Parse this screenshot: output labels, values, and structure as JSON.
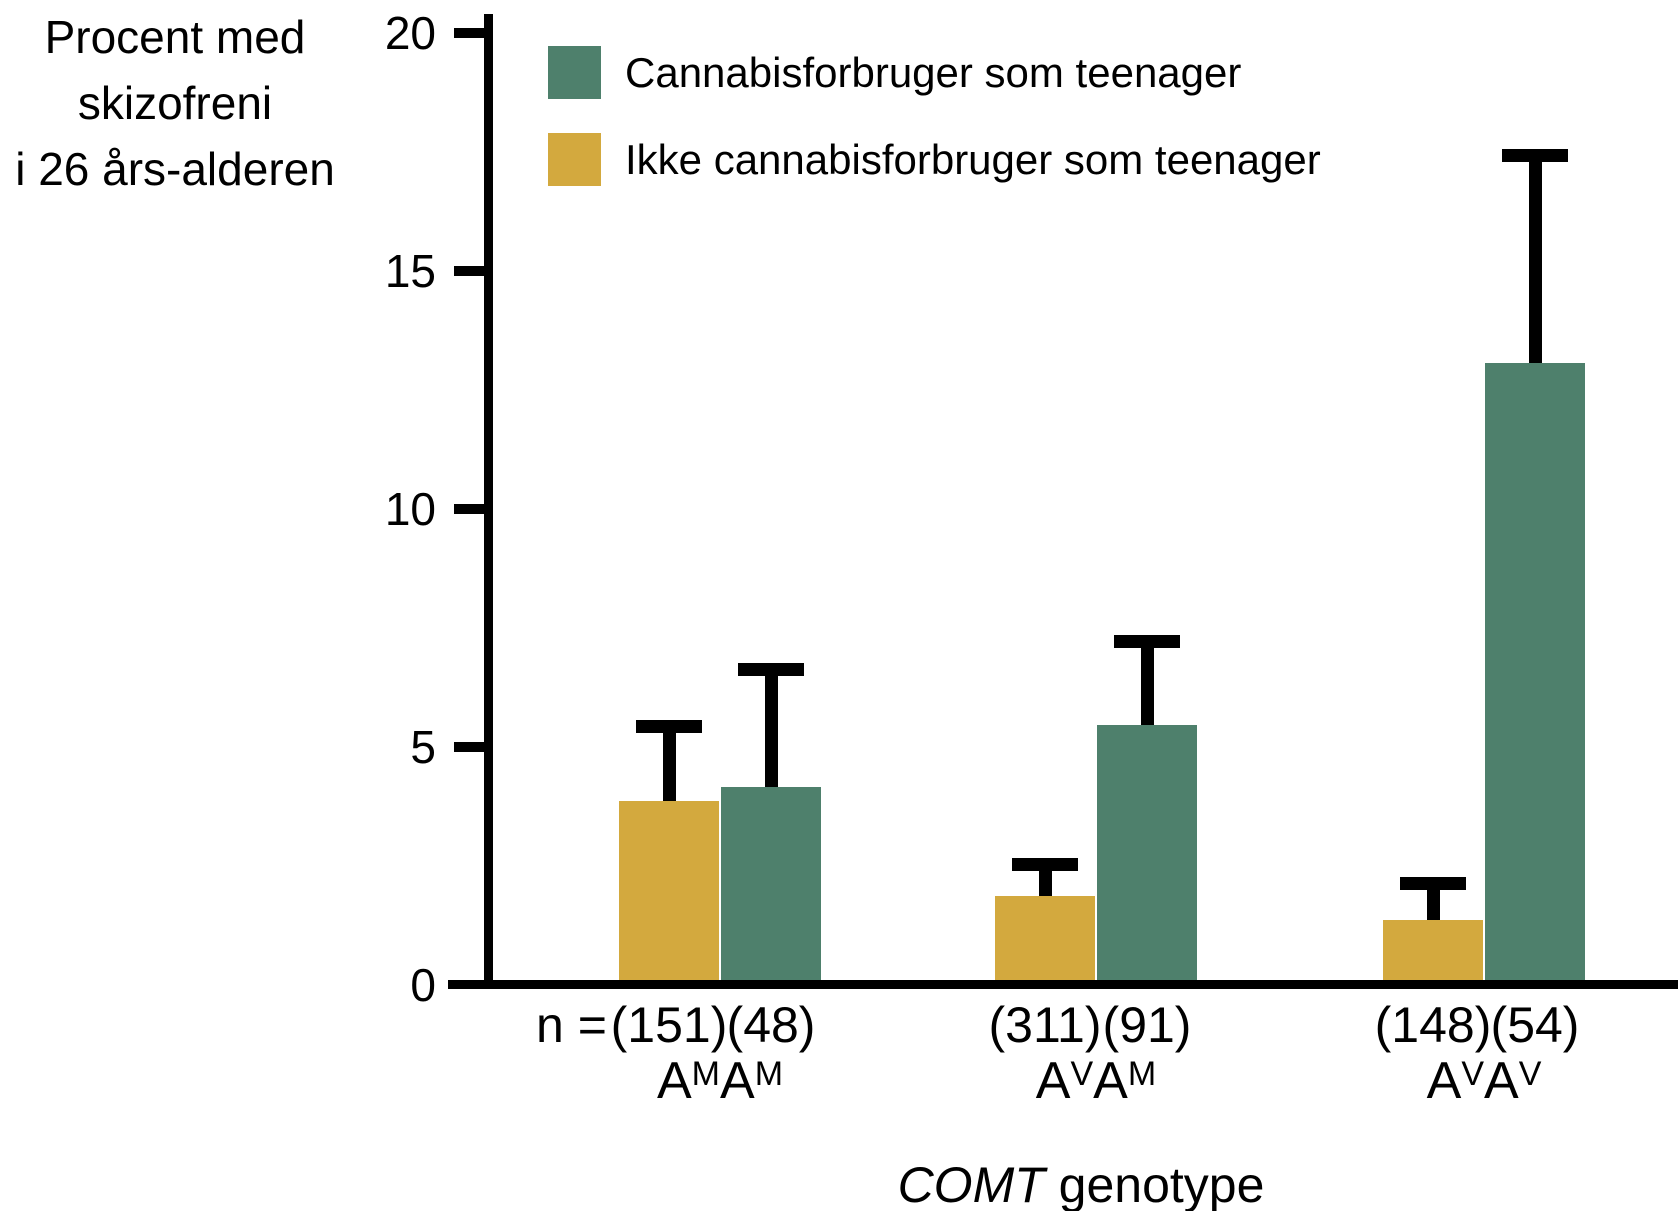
{
  "chart_data": {
    "type": "bar",
    "title": "",
    "ylabel_lines": [
      "Procent med",
      "skizofreni",
      "i 26 års-alderen"
    ],
    "xlabel": {
      "italic": "COMT",
      "rest": " genotype"
    },
    "ylim": [
      0,
      20
    ],
    "yticks": [
      0,
      5,
      10,
      15,
      20
    ],
    "grid": false,
    "legend_position": "top-left-inside",
    "n_prefix": "n =",
    "categories": [
      {
        "text": "AMAM",
        "parts": [
          {
            "t": "A"
          },
          {
            "t": "M",
            "sup": true
          },
          {
            "t": "A"
          },
          {
            "t": "M",
            "sup": true
          }
        ]
      },
      {
        "text": "AVAM",
        "parts": [
          {
            "t": "A"
          },
          {
            "t": "V",
            "sup": true
          },
          {
            "t": "A"
          },
          {
            "t": "M",
            "sup": true
          }
        ]
      },
      {
        "text": "AVAV",
        "parts": [
          {
            "t": "A"
          },
          {
            "t": "V",
            "sup": true
          },
          {
            "t": "A"
          },
          {
            "t": "V",
            "sup": true
          }
        ]
      }
    ],
    "series": [
      {
        "id": "cannabis",
        "name": "Cannabisforbruger som teenager",
        "color": "#4E806C",
        "values": [
          4.1,
          5.4,
          13.0
        ],
        "error_top": [
          6.7,
          7.3,
          17.5
        ],
        "n_labels": [
          "(48)",
          "(91)",
          "(54)"
        ]
      },
      {
        "id": "ikke-cannabis",
        "name": "Ikke cannabisforbruger som teenager",
        "color": "#D3A93E",
        "values": [
          3.8,
          1.8,
          1.3
        ],
        "error_top": [
          5.5,
          2.6,
          2.2
        ],
        "n_labels": [
          "(151)",
          "(311)",
          "(148)"
        ]
      }
    ],
    "bar_order_in_group": [
      "ikke-cannabis",
      "cannabis"
    ],
    "axis_color": "#000000",
    "text_color": "#000000",
    "background": "#FFFFFF"
  }
}
